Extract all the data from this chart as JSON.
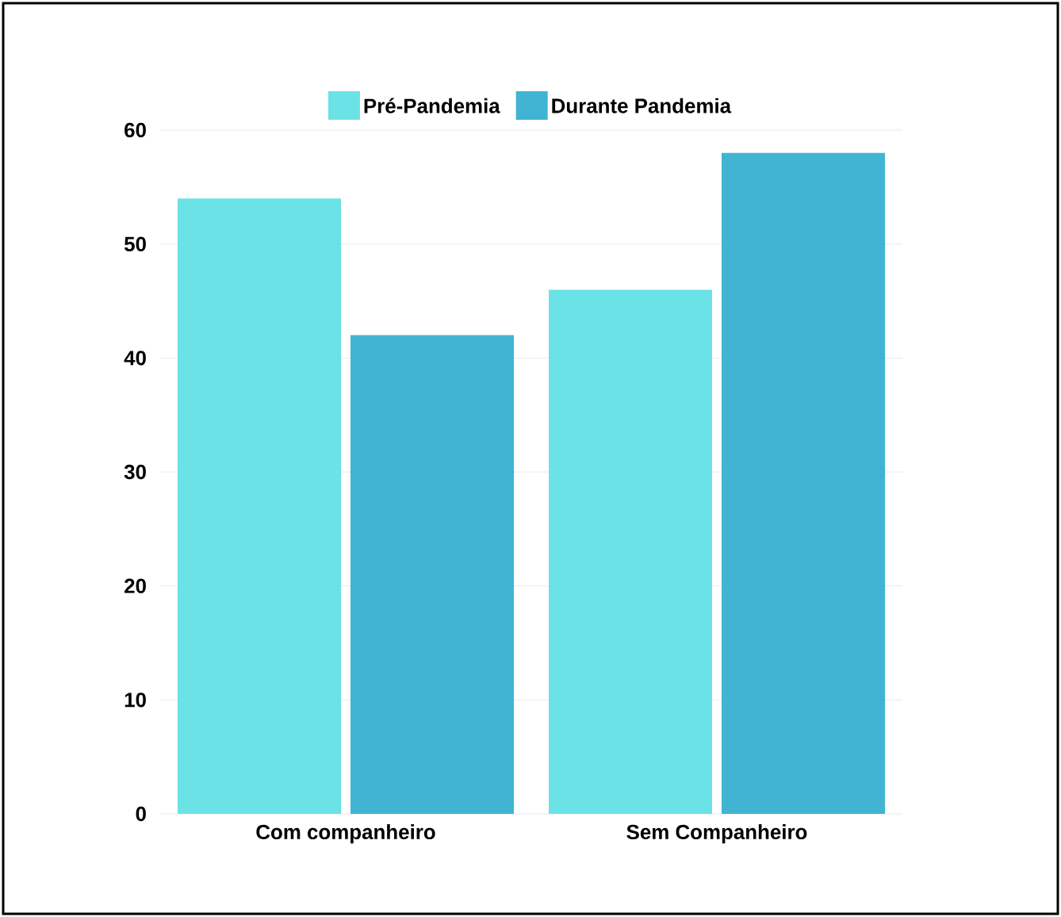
{
  "chart_data": {
    "type": "bar",
    "categories": [
      "Com companheiro",
      "Sem Companheiro"
    ],
    "series": [
      {
        "name": "Pré-Pandemia",
        "color": "#6ae2e6",
        "values": [
          54,
          46
        ]
      },
      {
        "name": "Durante Pandemia",
        "color": "#40b4d2",
        "values": [
          42,
          58
        ]
      }
    ],
    "ylim": [
      0,
      60
    ],
    "yticks": [
      0,
      10,
      20,
      30,
      40,
      50,
      60
    ],
    "grid": "y",
    "legend": "top"
  }
}
